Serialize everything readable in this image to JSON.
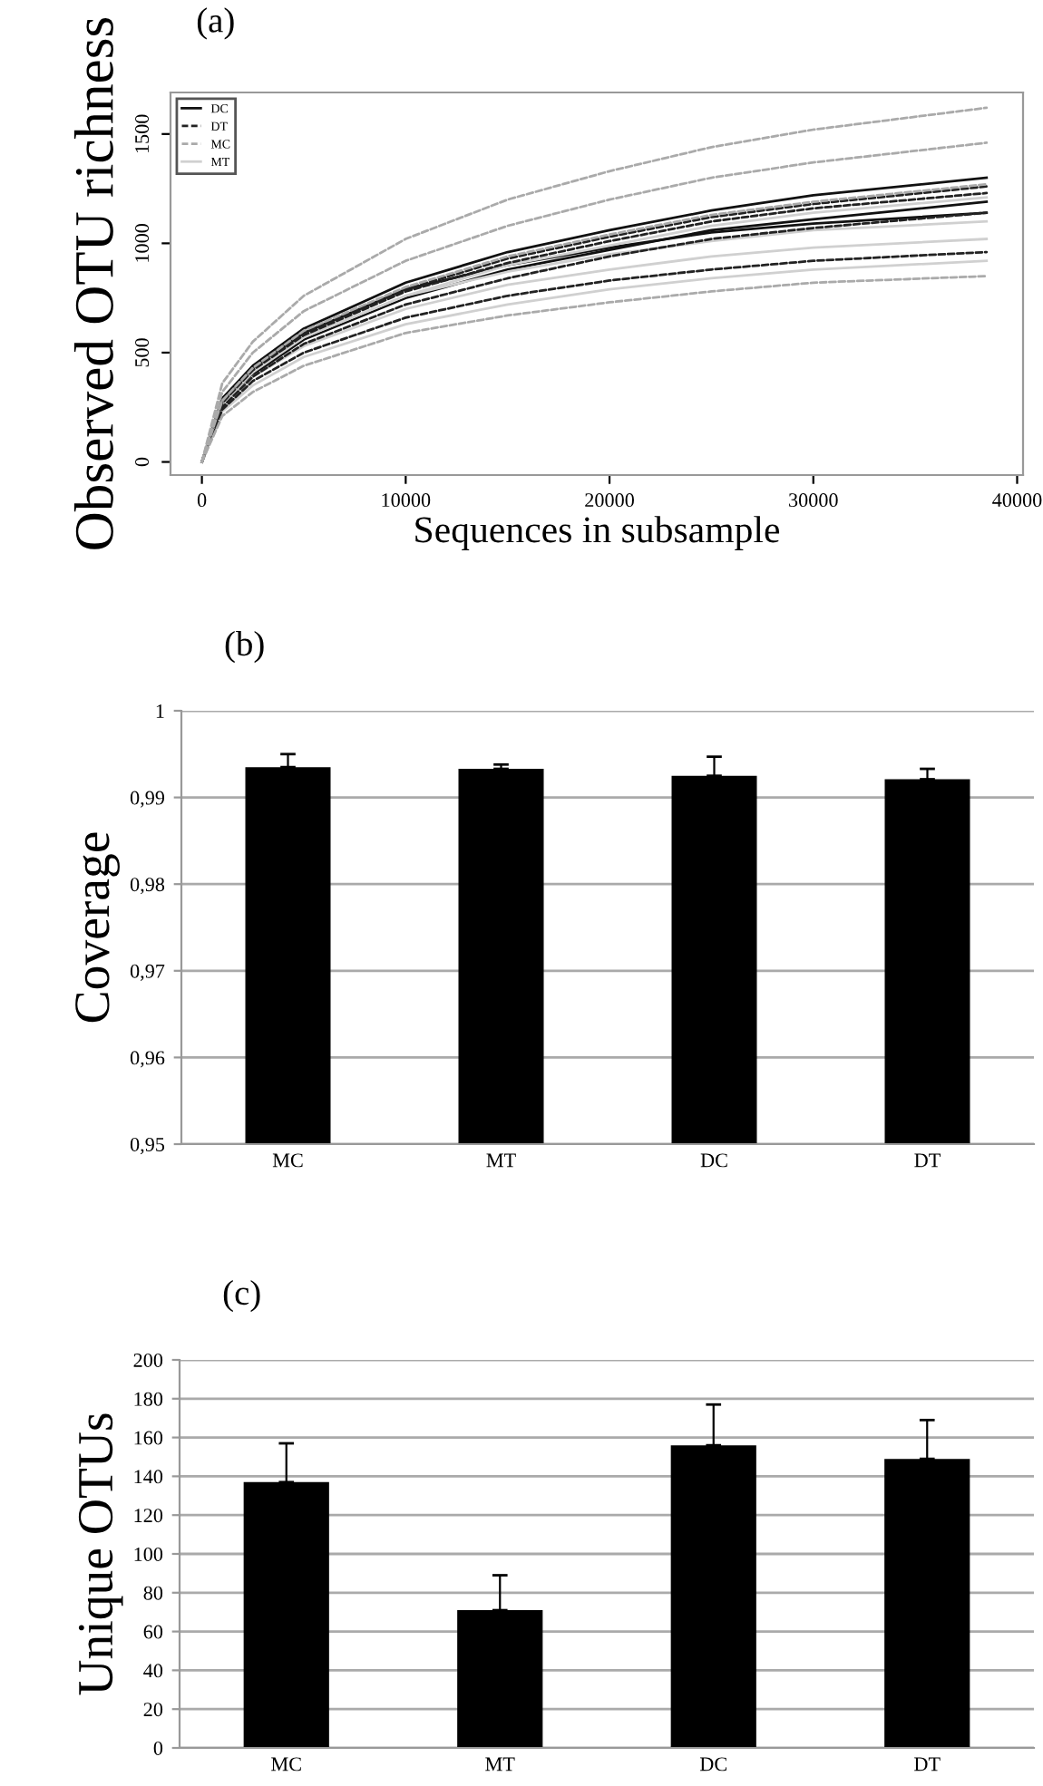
{
  "chart_data": [
    {
      "type": "line",
      "title": "(a)",
      "xlabel": "Sequences in subsample",
      "ylabel": "Observed OTU richness",
      "x": [
        0,
        1000,
        2500,
        5000,
        10000,
        15000,
        20000,
        25000,
        30000,
        38500
      ],
      "xlim": [
        -1540,
        40290
      ],
      "ylim": [
        -60,
        1690
      ],
      "xticks": [
        0,
        10000,
        20000,
        30000,
        40000
      ],
      "yticks": [
        0,
        500,
        1000,
        1500
      ],
      "legend": "top left",
      "grid": false,
      "series": [
        {
          "name": "DC",
          "color": "#111111",
          "line_style": "solid",
          "values": [
            0,
            290,
            440,
            610,
            820,
            960,
            1060,
            1150,
            1220,
            1300
          ]
        },
        {
          "color": "#111111",
          "line_style": "solid",
          "values": [
            0,
            260,
            400,
            560,
            750,
            880,
            970,
            1060,
            1110,
            1190
          ]
        },
        {
          "color": "#111111",
          "line_style": "solid",
          "values": [
            0,
            290,
            430,
            590,
            790,
            900,
            980,
            1050,
            1090,
            1140
          ]
        },
        {
          "name": "DT",
          "color": "#222222",
          "line_style": "dashed",
          "values": [
            0,
            280,
            430,
            590,
            790,
            930,
            1030,
            1120,
            1180,
            1260
          ]
        },
        {
          "color": "#222222",
          "line_style": "dashed",
          "values": [
            0,
            270,
            420,
            580,
            780,
            910,
            1010,
            1100,
            1160,
            1230
          ]
        },
        {
          "color": "#222222",
          "line_style": "dashed",
          "values": [
            0,
            250,
            390,
            540,
            720,
            840,
            940,
            1020,
            1070,
            1140
          ]
        },
        {
          "color": "#222222",
          "line_style": "dashed",
          "values": [
            0,
            240,
            370,
            500,
            660,
            760,
            830,
            880,
            920,
            960
          ]
        },
        {
          "name": "MC",
          "color": "#aaaaaa",
          "line_style": "dashed",
          "values": [
            0,
            360,
            550,
            760,
            1020,
            1200,
            1330,
            1440,
            1520,
            1620
          ]
        },
        {
          "color": "#aaaaaa",
          "line_style": "dashed",
          "values": [
            0,
            320,
            500,
            690,
            920,
            1080,
            1200,
            1300,
            1370,
            1460
          ]
        },
        {
          "color": "#aaaaaa",
          "line_style": "dashed",
          "values": [
            0,
            280,
            430,
            600,
            800,
            940,
            1040,
            1130,
            1190,
            1270
          ]
        },
        {
          "color": "#aaaaaa",
          "line_style": "dashed",
          "values": [
            0,
            210,
            320,
            440,
            590,
            670,
            730,
            780,
            820,
            850
          ]
        },
        {
          "name": "MT",
          "color": "#d0d0d0",
          "line_style": "solid",
          "values": [
            0,
            270,
            410,
            570,
            760,
            900,
            990,
            1080,
            1140,
            1210
          ]
        },
        {
          "color": "#d0d0d0",
          "line_style": "solid",
          "values": [
            0,
            280,
            420,
            570,
            760,
            870,
            950,
            1010,
            1060,
            1100
          ]
        },
        {
          "color": "#d0d0d0",
          "line_style": "solid",
          "values": [
            0,
            260,
            390,
            530,
            700,
            810,
            880,
            940,
            980,
            1020
          ]
        },
        {
          "color": "#d0d0d0",
          "line_style": "solid",
          "values": [
            0,
            230,
            350,
            480,
            630,
            720,
            790,
            840,
            880,
            920
          ]
        }
      ]
    },
    {
      "type": "bar",
      "title": "(b)",
      "ylabel": "Coverage",
      "categories": [
        "MC",
        "MT",
        "DC",
        "DT"
      ],
      "values": [
        0.9935,
        0.9933,
        0.9925,
        0.9921
      ],
      "errors": [
        [
          0.9935,
          0.995
        ],
        [
          0.9933,
          0.9938
        ],
        [
          0.9925,
          0.9947
        ],
        [
          0.9921,
          0.9933
        ]
      ],
      "color": "#000000",
      "ylim": [
        0.95,
        1
      ],
      "yticks": [
        {
          "value": 0.95,
          "label": "0,95"
        },
        {
          "value": 0.96,
          "label": "0,96"
        },
        {
          "value": 0.97,
          "label": "0,97"
        },
        {
          "value": 0.98,
          "label": "0,98"
        },
        {
          "value": 0.99,
          "label": "0,99"
        },
        {
          "value": 1,
          "label": "1"
        }
      ],
      "grid": "y"
    },
    {
      "type": "bar",
      "title": "(c)",
      "ylabel": "Unique OTUs",
      "categories": [
        "MC",
        "MT",
        "DC",
        "DT"
      ],
      "values": [
        137,
        71,
        156,
        149
      ],
      "errors": [
        [
          137,
          157
        ],
        [
          71,
          89
        ],
        [
          156,
          177
        ],
        [
          149,
          169
        ]
      ],
      "color": "#000000",
      "ylim": [
        0,
        200
      ],
      "yticks": [
        0,
        20,
        40,
        60,
        80,
        100,
        120,
        140,
        160,
        180,
        200
      ],
      "grid": "y"
    }
  ]
}
